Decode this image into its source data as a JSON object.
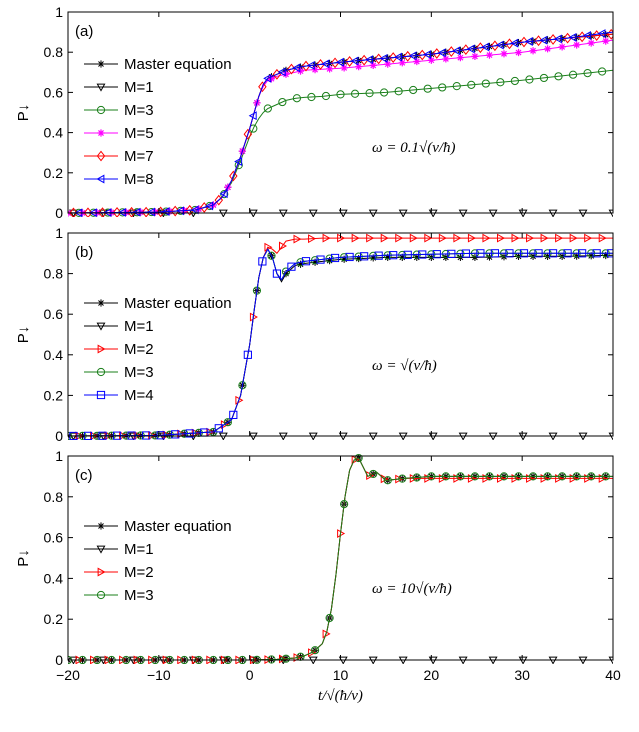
{
  "figure": {
    "x_axis_label": "t/√(ħ/v)",
    "x_ticks": [
      -20,
      -10,
      0,
      10,
      20,
      30,
      40
    ]
  },
  "chart_data": [
    {
      "type": "line",
      "panel_label": "(a)",
      "ylabel": "P↓",
      "annotation": "ω = 0.1√(v/ħ)",
      "xlim": [
        -20,
        40
      ],
      "ylim": [
        0,
        1
      ],
      "y_ticks": [
        0,
        0.2,
        0.4,
        0.6,
        0.8,
        1
      ],
      "legend_position": "top-left",
      "series": [
        {
          "name": "Master equation",
          "color": "#000000",
          "marker": "asterisk",
          "x": [
            -20,
            -10,
            -6,
            -4,
            -3,
            -2,
            -1,
            0,
            0.5,
            1,
            1.5,
            2,
            2.5,
            3,
            3.5,
            4,
            5,
            6,
            8,
            10,
            15,
            20,
            25,
            30,
            35,
            40
          ],
          "y": [
            0,
            0.005,
            0.015,
            0.04,
            0.08,
            0.16,
            0.28,
            0.42,
            0.5,
            0.58,
            0.64,
            0.67,
            0.68,
            0.69,
            0.7,
            0.71,
            0.72,
            0.73,
            0.74,
            0.75,
            0.77,
            0.79,
            0.82,
            0.85,
            0.87,
            0.89
          ]
        },
        {
          "name": "M=1",
          "color": "#000000",
          "marker": "triangle-down",
          "x": [
            -20,
            40
          ],
          "y": [
            0,
            0
          ]
        },
        {
          "name": "M=3",
          "color": "#1a7f1a",
          "marker": "circle",
          "x": [
            -20,
            -10,
            -6,
            -4,
            -3,
            -2,
            -1,
            0,
            0.5,
            1,
            1.5,
            2,
            2.5,
            3,
            4,
            5,
            6,
            8,
            10,
            15,
            20,
            25,
            30,
            35,
            40
          ],
          "y": [
            0,
            0.005,
            0.015,
            0.04,
            0.08,
            0.15,
            0.26,
            0.38,
            0.43,
            0.47,
            0.5,
            0.52,
            0.53,
            0.54,
            0.56,
            0.57,
            0.575,
            0.58,
            0.59,
            0.6,
            0.62,
            0.64,
            0.66,
            0.685,
            0.71
          ]
        },
        {
          "name": "M=5",
          "color": "#ff00ff",
          "marker": "star",
          "x": [
            -20,
            -10,
            -6,
            -4,
            -3,
            -2,
            -1,
            0,
            0.5,
            1,
            1.5,
            2,
            2.5,
            3,
            4,
            5,
            6,
            8,
            10,
            15,
            20,
            25,
            30,
            35,
            40
          ],
          "y": [
            0,
            0.005,
            0.015,
            0.04,
            0.08,
            0.16,
            0.28,
            0.42,
            0.5,
            0.58,
            0.63,
            0.66,
            0.67,
            0.68,
            0.69,
            0.7,
            0.71,
            0.715,
            0.72,
            0.74,
            0.76,
            0.78,
            0.8,
            0.83,
            0.86
          ]
        },
        {
          "name": "M=7",
          "color": "#ff0000",
          "marker": "diamond",
          "x": [
            -20,
            -10,
            -6,
            -4,
            -3,
            -2,
            -1,
            0,
            0.5,
            1,
            1.5,
            2,
            2.5,
            3,
            3.5,
            4,
            5,
            6,
            8,
            10,
            15,
            20,
            25,
            30,
            35,
            40
          ],
          "y": [
            0,
            0.005,
            0.015,
            0.04,
            0.08,
            0.16,
            0.28,
            0.42,
            0.5,
            0.58,
            0.64,
            0.67,
            0.68,
            0.69,
            0.7,
            0.71,
            0.72,
            0.73,
            0.74,
            0.75,
            0.77,
            0.79,
            0.82,
            0.85,
            0.87,
            0.89
          ]
        },
        {
          "name": "M=8",
          "color": "#0000ff",
          "marker": "triangle-left",
          "x": [
            -20,
            -10,
            -6,
            -4,
            -3,
            -2,
            -1,
            0,
            0.5,
            1,
            1.5,
            2,
            2.5,
            3,
            3.5,
            4,
            5,
            6,
            8,
            10,
            15,
            20,
            25,
            30,
            35,
            40
          ],
          "y": [
            0,
            0.005,
            0.015,
            0.04,
            0.08,
            0.16,
            0.28,
            0.42,
            0.5,
            0.58,
            0.64,
            0.67,
            0.68,
            0.69,
            0.7,
            0.71,
            0.72,
            0.73,
            0.74,
            0.75,
            0.77,
            0.79,
            0.82,
            0.85,
            0.87,
            0.9
          ]
        }
      ]
    },
    {
      "type": "line",
      "panel_label": "(b)",
      "ylabel": "P↓",
      "annotation": "ω = √(v/ħ)",
      "xlim": [
        -20,
        40
      ],
      "ylim": [
        0,
        1
      ],
      "y_ticks": [
        0,
        0.2,
        0.4,
        0.6,
        0.8,
        1
      ],
      "legend_position": "left",
      "series": [
        {
          "name": "Master equation",
          "color": "#000000",
          "marker": "asterisk",
          "x": [
            -20,
            -10,
            -4,
            -2,
            -1,
            0,
            0.5,
            1,
            1.5,
            2,
            2.5,
            3,
            3.5,
            4,
            5,
            6,
            8,
            10,
            15,
            20,
            25,
            30,
            35,
            40
          ],
          "y": [
            0,
            0.003,
            0.02,
            0.08,
            0.2,
            0.45,
            0.62,
            0.78,
            0.88,
            0.92,
            0.88,
            0.8,
            0.76,
            0.8,
            0.84,
            0.85,
            0.86,
            0.87,
            0.88,
            0.88,
            0.88,
            0.885,
            0.885,
            0.89
          ]
        },
        {
          "name": "M=1",
          "color": "#000000",
          "marker": "triangle-down",
          "x": [
            -20,
            40
          ],
          "y": [
            0,
            0
          ]
        },
        {
          "name": "M=2",
          "color": "#ff0000",
          "marker": "triangle-right",
          "x": [
            -20,
            -10,
            -4,
            -2,
            -1,
            0,
            0.5,
            1,
            1.5,
            2,
            2.5,
            3,
            3.5,
            4,
            5,
            6,
            8,
            10,
            15,
            20,
            25,
            30,
            35,
            40
          ],
          "y": [
            0,
            0.003,
            0.02,
            0.08,
            0.2,
            0.45,
            0.62,
            0.78,
            0.88,
            0.93,
            0.92,
            0.9,
            0.93,
            0.96,
            0.97,
            0.97,
            0.975,
            0.975,
            0.975,
            0.975,
            0.975,
            0.975,
            0.975,
            0.975
          ]
        },
        {
          "name": "M=3",
          "color": "#1a7f1a",
          "marker": "circle",
          "x": [
            -20,
            -10,
            -4,
            -2,
            -1,
            0,
            0.5,
            1,
            1.5,
            2,
            2.5,
            3,
            3.5,
            4,
            5,
            6,
            8,
            10,
            15,
            20,
            25,
            30,
            35,
            40
          ],
          "y": [
            0,
            0.003,
            0.02,
            0.08,
            0.2,
            0.45,
            0.62,
            0.78,
            0.88,
            0.92,
            0.88,
            0.8,
            0.77,
            0.81,
            0.85,
            0.86,
            0.87,
            0.88,
            0.89,
            0.895,
            0.9,
            0.9,
            0.9,
            0.9
          ]
        },
        {
          "name": "M=4",
          "color": "#0000ff",
          "marker": "square",
          "x": [
            -20,
            -10,
            -4,
            -2,
            -1,
            0,
            0.5,
            1,
            1.5,
            2,
            2.5,
            3,
            3.5,
            4,
            5,
            6,
            8,
            10,
            15,
            20,
            25,
            30,
            35,
            40
          ],
          "y": [
            0,
            0.003,
            0.02,
            0.08,
            0.2,
            0.45,
            0.62,
            0.78,
            0.88,
            0.92,
            0.88,
            0.8,
            0.77,
            0.81,
            0.85,
            0.86,
            0.87,
            0.88,
            0.89,
            0.895,
            0.9,
            0.9,
            0.9,
            0.9
          ]
        }
      ]
    },
    {
      "type": "line",
      "panel_label": "(c)",
      "ylabel": "P↓",
      "annotation": "ω = 10√(v/ħ)",
      "xlim": [
        -20,
        40
      ],
      "ylim": [
        0,
        1
      ],
      "y_ticks": [
        0,
        0.2,
        0.4,
        0.6,
        0.8,
        1
      ],
      "legend_position": "left",
      "series": [
        {
          "name": "Master equation",
          "color": "#000000",
          "marker": "asterisk",
          "x": [
            -20,
            -10,
            0,
            3,
            5,
            6,
            7,
            8,
            8.5,
            9,
            9.5,
            10,
            10.5,
            11,
            11.5,
            12,
            13,
            14,
            15,
            17,
            20,
            25,
            30,
            35,
            40
          ],
          "y": [
            0,
            0,
            0,
            0.003,
            0.01,
            0.02,
            0.04,
            0.08,
            0.14,
            0.25,
            0.42,
            0.62,
            0.8,
            0.93,
            0.98,
            0.99,
            0.9,
            0.92,
            0.88,
            0.89,
            0.9,
            0.9,
            0.9,
            0.9,
            0.9
          ]
        },
        {
          "name": "M=1",
          "color": "#000000",
          "marker": "triangle-down",
          "x": [
            -20,
            40
          ],
          "y": [
            0,
            0
          ]
        },
        {
          "name": "M=2",
          "color": "#ff0000",
          "marker": "triangle-right",
          "x": [
            -20,
            -10,
            0,
            3,
            5,
            6,
            7,
            8,
            8.5,
            9,
            9.5,
            10,
            10.5,
            11,
            11.5,
            12,
            13,
            14,
            15,
            17,
            20,
            25,
            30,
            35,
            40
          ],
          "y": [
            0,
            0,
            0,
            0.003,
            0.01,
            0.02,
            0.04,
            0.08,
            0.14,
            0.25,
            0.42,
            0.62,
            0.8,
            0.93,
            0.98,
            0.99,
            0.9,
            0.92,
            0.88,
            0.89,
            0.89,
            0.89,
            0.89,
            0.89,
            0.89
          ]
        },
        {
          "name": "M=3",
          "color": "#1a7f1a",
          "marker": "circle",
          "x": [
            -20,
            -10,
            0,
            3,
            5,
            6,
            7,
            8,
            8.5,
            9,
            9.5,
            10,
            10.5,
            11,
            11.5,
            12,
            13,
            14,
            15,
            17,
            20,
            25,
            30,
            35,
            40
          ],
          "y": [
            0,
            0,
            0,
            0.003,
            0.01,
            0.02,
            0.04,
            0.08,
            0.14,
            0.25,
            0.42,
            0.62,
            0.8,
            0.93,
            0.98,
            0.99,
            0.9,
            0.92,
            0.88,
            0.89,
            0.9,
            0.9,
            0.9,
            0.9,
            0.9
          ]
        }
      ]
    }
  ]
}
